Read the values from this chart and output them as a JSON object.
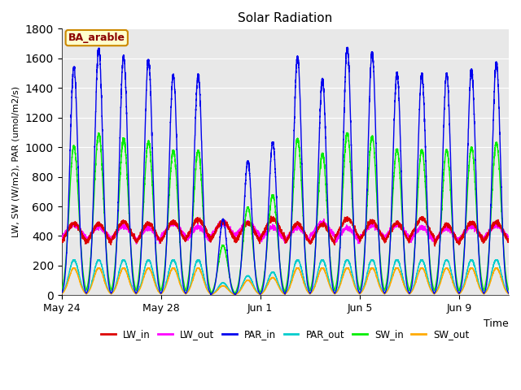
{
  "title": "Solar Radiation",
  "ylabel": "LW, SW (W/m2), PAR (umol/m2/s)",
  "xlabel": "Time",
  "annotation": "BA_arable",
  "ylim": [
    0,
    1800
  ],
  "yticks": [
    0,
    200,
    400,
    600,
    800,
    1000,
    1200,
    1400,
    1600,
    1800
  ],
  "xtick_labels": [
    "May 24",
    "May 28",
    "Jun 1",
    "Jun 5",
    "Jun 9"
  ],
  "xtick_pos": [
    0,
    4,
    8,
    12,
    16
  ],
  "series": {
    "LW_in": {
      "color": "#dd0000",
      "lw": 1.0
    },
    "LW_out": {
      "color": "#ff00ff",
      "lw": 1.0
    },
    "PAR_in": {
      "color": "#0000ee",
      "lw": 1.0
    },
    "PAR_out": {
      "color": "#00cccc",
      "lw": 1.0
    },
    "SW_in": {
      "color": "#00ee00",
      "lw": 1.0
    },
    "SW_out": {
      "color": "#ffaa00",
      "lw": 1.0
    }
  },
  "plot_bg_color": "#e8e8e8",
  "plot_bg_threshold": 580,
  "n_days": 18,
  "pts_per_day": 288,
  "cloud_days": [
    6,
    7,
    8
  ],
  "cloud_factors": [
    0.35,
    0.55,
    0.65
  ]
}
